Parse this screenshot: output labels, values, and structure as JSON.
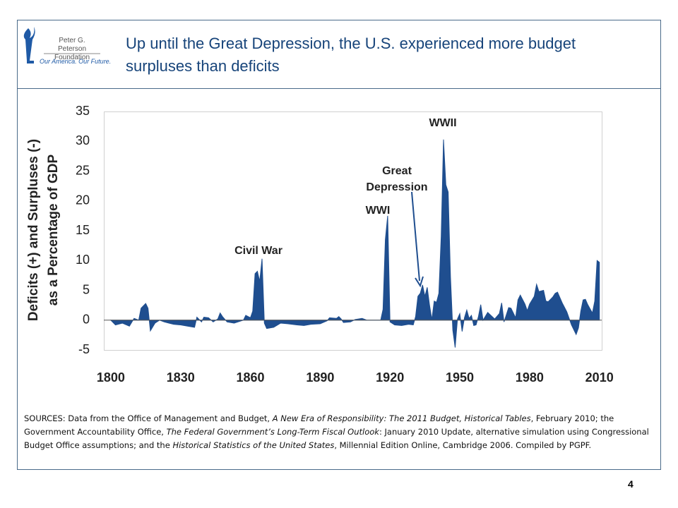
{
  "logo": {
    "name": "Peter G. Peterson Foundation",
    "tagline": "Our America. Our Future."
  },
  "title": "Up until the Great Depression, the U.S. experienced more budget surpluses than deficits",
  "chart_data": {
    "type": "area",
    "y_label": [
      "Deficits (+) and Surpluses (-)",
      "as a Percentage of GDP"
    ],
    "color": "#1f4e8f",
    "xlim": [
      1797,
      2011
    ],
    "xticks": [
      1800,
      1830,
      1860,
      1890,
      1920,
      1950,
      1980,
      2010
    ],
    "ylim": [
      -5,
      35
    ],
    "yticks": [
      -5,
      0,
      5,
      10,
      15,
      20,
      25,
      30,
      35
    ],
    "grid": false,
    "annotations": [
      "Civil War",
      "WWI",
      "Great Depression",
      "WWII"
    ],
    "x": [
      1800,
      1802,
      1805,
      1808,
      1810,
      1812,
      1813,
      1815,
      1816,
      1817,
      1819,
      1821,
      1823,
      1825,
      1827,
      1830,
      1833,
      1836,
      1837,
      1839,
      1840,
      1842,
      1844,
      1846,
      1847,
      1848,
      1850,
      1853,
      1857,
      1858,
      1860,
      1861,
      1862,
      1863,
      1864,
      1865,
      1866,
      1867,
      1870,
      1873,
      1876,
      1880,
      1883,
      1886,
      1890,
      1893,
      1894,
      1897,
      1898,
      1899,
      1900,
      1903,
      1905,
      1908,
      1910,
      1913,
      1916,
      1917,
      1918,
      1919,
      1920,
      1922,
      1925,
      1928,
      1930,
      1931,
      1932,
      1933,
      1934,
      1935,
      1936,
      1937,
      1938,
      1939,
      1940,
      1941,
      1942,
      1943,
      1944,
      1945,
      1946,
      1947,
      1948,
      1949,
      1950,
      1951,
      1952,
      1953,
      1954,
      1955,
      1956,
      1957,
      1958,
      1959,
      1960,
      1962,
      1965,
      1967,
      1968,
      1969,
      1971,
      1972,
      1974,
      1975,
      1976,
      1978,
      1979,
      1980,
      1982,
      1983,
      1984,
      1986,
      1987,
      1988,
      1990,
      1991,
      1992,
      1994,
      1996,
      1998,
      2000,
      2001,
      2002,
      2003,
      2004,
      2005,
      2006,
      2007,
      2008,
      2009,
      2010
    ],
    "values": [
      0,
      -0.8,
      -0.5,
      -1,
      0.3,
      0,
      2,
      2.8,
      2,
      -1.8,
      -0.5,
      0,
      -0.3,
      -0.5,
      -0.7,
      -0.8,
      -1,
      -1.2,
      0.5,
      -0.3,
      0.5,
      0.4,
      -0.3,
      0.2,
      1.2,
      0.6,
      -0.3,
      -0.5,
      0,
      0.8,
      0.4,
      1.5,
      7.8,
      8.2,
      6.5,
      10.3,
      -0.5,
      -1.4,
      -1.2,
      -0.5,
      -0.6,
      -0.8,
      -0.9,
      -0.7,
      -0.6,
      -0.1,
      0.4,
      0.3,
      0.6,
      0.2,
      -0.4,
      -0.3,
      0.1,
      0.3,
      0,
      0,
      0,
      1.8,
      13.5,
      17.5,
      -0.3,
      -0.8,
      -0.9,
      -0.7,
      -0.8,
      0.6,
      4,
      4.5,
      5.9,
      4,
      5.5,
      2.5,
      0.1,
      3.2,
      3,
      4.5,
      14,
      30.3,
      22.7,
      21.5,
      7.2,
      -1.7,
      -4.6,
      0.2,
      1.1,
      -1.9,
      0.4,
      1.7,
      0.3,
      0.8,
      -0.9,
      -0.8,
      0.6,
      2.6,
      0,
      1.3,
      0.2,
      1.1,
      2.9,
      -0.3,
      2.1,
      2,
      0.4,
      3.4,
      4.2,
      2.7,
      1.6,
      2.7,
      4,
      6,
      4.8,
      5,
      3.2,
      3.1,
      3.9,
      4.5,
      4.7,
      2.9,
      1.4,
      -0.8,
      -2.4,
      -1.3,
      1.5,
      3.4,
      3.5,
      2.6,
      1.9,
      1.2,
      3.2,
      10,
      9.7
    ]
  },
  "sources": [
    "SOURCES: Data from the Office of Management and Budget, ",
    "A New Era of Responsibility: The 2011 Budget, Historical Tables",
    ", February 2010; the Government Accountability Office, ",
    "The Federal Government’s Long-Term Fiscal Outlook",
    ": January 2010 Update, alternative simulation using Congressional Budget Office assumptions; and the ",
    "Historical Statistics of the United States",
    ", Millennial Edition Online, Cambridge 2006. Compiled by PGPF."
  ],
  "page_number": "4"
}
